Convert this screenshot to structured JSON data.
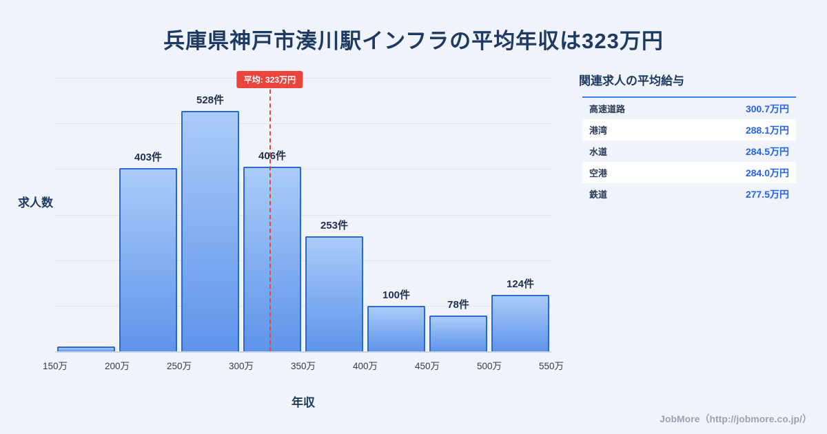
{
  "page": {
    "title": "兵庫県神戸市湊川駅インフラの平均年収は323万円"
  },
  "chart_data": {
    "type": "bar",
    "title": "兵庫県神戸市湊川駅インフラの平均年収は323万円",
    "xlabel": "年収",
    "ylabel": "求人数",
    "x_ticks": [
      "150万",
      "200万",
      "250万",
      "300万",
      "350万",
      "400万",
      "450万",
      "500万",
      "550万"
    ],
    "x_range": [
      150,
      550
    ],
    "ylim": [
      0,
      620
    ],
    "gridline_step": 100,
    "grid": true,
    "bins": [
      {
        "range": "150万-200万",
        "value": 10,
        "label": ""
      },
      {
        "range": "200万-250万",
        "value": 403,
        "label": "403件"
      },
      {
        "range": "250万-300万",
        "value": 528,
        "label": "528件"
      },
      {
        "range": "300万-350万",
        "value": 406,
        "label": "406件"
      },
      {
        "range": "350万-400万",
        "value": 253,
        "label": "253件"
      },
      {
        "range": "400万-450万",
        "value": 100,
        "label": "100件"
      },
      {
        "range": "450万-500万",
        "value": 78,
        "label": "78件"
      },
      {
        "range": "500万-550万",
        "value": 124,
        "label": "124件"
      }
    ],
    "mean": {
      "value": 323,
      "label": "平均: 323万円"
    }
  },
  "side_panel": {
    "title": "関連求人の平均給与",
    "rows": [
      {
        "label": "高速道路",
        "value": "300.7万円"
      },
      {
        "label": "港湾",
        "value": "288.1万円"
      },
      {
        "label": "水道",
        "value": "284.5万円"
      },
      {
        "label": "空港",
        "value": "284.0万円"
      },
      {
        "label": "鉄道",
        "value": "277.5万円"
      }
    ]
  },
  "footer": {
    "credit": "JobMore（http://jobmore.co.jp/）"
  },
  "colors": {
    "page_bg": "#f0f4fa",
    "title_navy": "#1d3a63",
    "accent_red": "#e8453c",
    "value_blue": "#2563eb",
    "bar_gradient_top": "#aaccf8",
    "bar_gradient_bottom": "#5f94ea",
    "bar_border": "#2a6ad0",
    "gridline": "#dce5f0"
  }
}
